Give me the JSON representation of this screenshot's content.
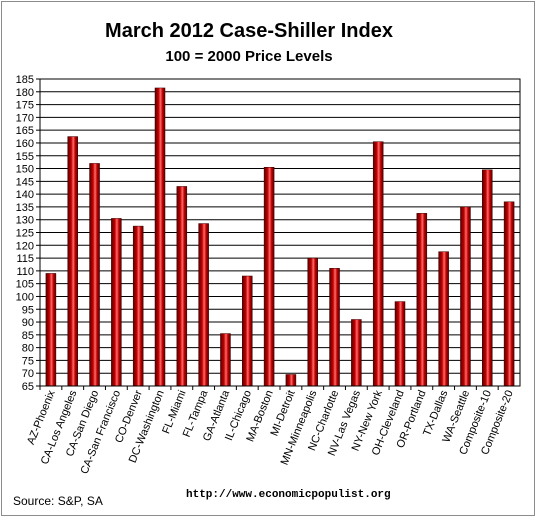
{
  "chart_data": {
    "type": "bar",
    "title": "March 2012 Case-Shiller Index",
    "subtitle": "100 = 2000 Price Levels",
    "xlabel": "",
    "ylabel": "",
    "ylim": [
      65,
      185
    ],
    "ytick_step": 5,
    "grid": true,
    "legend": "none",
    "categories": [
      "AZ-Phoenix",
      "CA-Los Angeles",
      "CA-San Diego",
      "CA-San Francisco",
      "CO-Denver",
      "DC-Washington",
      "FL-Miami",
      "FL-Tampa",
      "GA-Atlanta",
      "IL-Chicago",
      "MA-Boston",
      "MI-Detroit",
      "MN-Minneapolis",
      "NC-Charlotte",
      "NV-Las Vegas",
      "NY-New York",
      "OH-Cleveland",
      "OR-Portland",
      "TX-Dallas",
      "WA-Seattle",
      "Composite-10",
      "Composite-20"
    ],
    "values": [
      109,
      162.5,
      152,
      130.5,
      127.5,
      181.5,
      143,
      128.5,
      85.5,
      108,
      150.5,
      69.5,
      115,
      111,
      91,
      160.5,
      98,
      132.5,
      117.5,
      135,
      149.5,
      137
    ],
    "colors": {
      "bar_dark": "#5a0000",
      "bar_mid": "#c00000",
      "bar_light": "#ff6a6a",
      "grid": "#000000"
    }
  },
  "footer": {
    "source": "Source:  S&P, SA",
    "url": "http://www.economicpopulist.org"
  }
}
